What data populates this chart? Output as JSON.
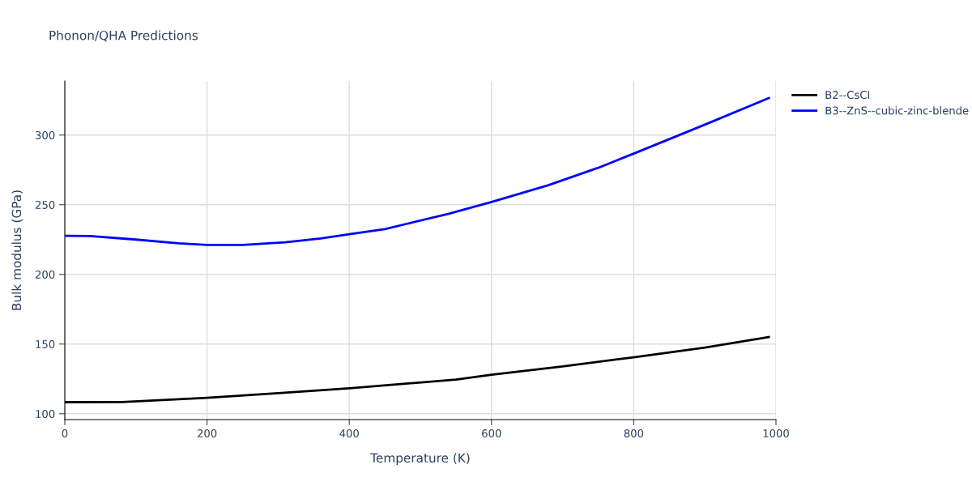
{
  "chart_data": {
    "type": "line",
    "title": "Phonon/QHA Predictions",
    "xlabel": "Temperature (K)",
    "ylabel": "Bulk modulus (GPa)",
    "xlim": [
      0,
      1000
    ],
    "xticks": [
      0,
      200,
      400,
      600,
      800,
      1000
    ],
    "ylim": [
      95.8,
      338.8
    ],
    "yticks": [
      100,
      150,
      200,
      250,
      300
    ],
    "grid": true,
    "legend": "top right",
    "line_style": "solid",
    "marker": "none",
    "series": [
      {
        "name": "B2--CsCl",
        "color": "#000000",
        "x": [
          0,
          80,
          200,
          300,
          400,
          550,
          600,
          700,
          800,
          900,
          990
        ],
        "values": [
          108.3,
          108.4,
          111.4,
          114.8,
          118.3,
          124.5,
          128.0,
          134.0,
          140.5,
          147.5,
          155.0
        ]
      },
      {
        "name": "B3--ZnS--cubic-zinc-blende",
        "color": "#0000ff",
        "x": [
          0,
          35,
          100,
          160,
          200,
          250,
          310,
          360,
          400,
          450,
          480,
          540,
          600,
          680,
          750,
          800,
          900,
          990
        ],
        "values": [
          227.7,
          227.6,
          225.0,
          222.3,
          221.1,
          221.2,
          223.0,
          225.8,
          228.8,
          232.5,
          236.2,
          243.5,
          252.0,
          264.0,
          276.5,
          286.7,
          307.5,
          326.6
        ]
      }
    ]
  }
}
